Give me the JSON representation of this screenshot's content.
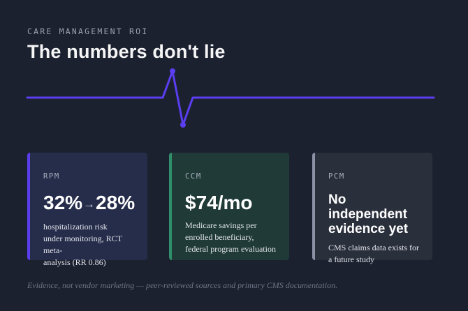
{
  "header": {
    "eyebrow": "CARE MANAGEMENT ROI",
    "title": "The numbers don't lie"
  },
  "colors": {
    "background": "#1c2130",
    "pulse": "#5a3ef0",
    "rpm_accent": "#5a3ef0",
    "ccm_accent": "#2f8f6a",
    "pcm_accent": "#8d93a6"
  },
  "cards": [
    {
      "label": "RPM",
      "stat_from": "32%",
      "stat_arrow": "→",
      "stat_to": "28%",
      "desc_lines": [
        "hospitalization risk",
        "under monitoring, RCT meta-",
        "analysis (RR 0.86)"
      ]
    },
    {
      "label": "CCM",
      "stat": "$74/mo",
      "desc_lines": [
        "Medicare savings per",
        "enrolled beneficiary,",
        "federal program evaluation"
      ]
    },
    {
      "label": "PCM",
      "stat_lines": [
        "No independent",
        "evidence yet"
      ],
      "desc_lines": [
        "CMS claims data exists for",
        "a future study"
      ]
    }
  ],
  "footer": "Evidence, not vendor marketing — peer-reviewed sources and primary CMS documentation."
}
